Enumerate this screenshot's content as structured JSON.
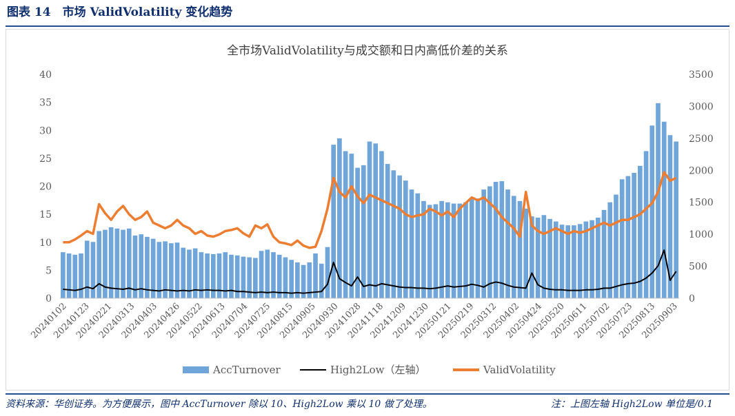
{
  "figure": {
    "title": "图表 14　市场 ValidVolatility 变化趋势",
    "source_note": "资料来源：华创证券。为方便展示，图中 AccTurnover 除以 10、High2Low 乘以 10 做了处理。",
    "unit_note": "注：上图左轴 High2Low 单位是/0.1"
  },
  "colors": {
    "acc_turnover": "#6fa5d8",
    "high2low": "#000000",
    "valid_volatility": "#ed7d31",
    "axis_text": "#595959",
    "title_blue": "#0f2f6f"
  },
  "chart_data": {
    "type": "bar+line",
    "title": "全市场ValidVolatility与成交额和日内高低价差的关系",
    "left_axis": {
      "min": 0,
      "max": 40,
      "ticks": [
        "0",
        "5",
        "10",
        "15",
        "20",
        "25",
        "30",
        "35",
        "40"
      ]
    },
    "right_axis": {
      "min": 0,
      "max": 3500,
      "ticks": [
        "0",
        "500",
        "1000",
        "1500",
        "2000",
        "2500",
        "3000",
        "3500"
      ]
    },
    "grid": false,
    "legend_position": "bottom",
    "x_tick_labels": [
      "20240102",
      "20240123",
      "20240221",
      "20240313",
      "20240403",
      "20240426",
      "20240522",
      "20240613",
      "20240704",
      "20240725",
      "20240815",
      "20240905",
      "20240930",
      "20241028",
      "20241118",
      "20241209",
      "20241230",
      "20250121",
      "20250219",
      "20250312",
      "20250402",
      "20250424",
      "20250520",
      "20250611",
      "20250702",
      "20250723",
      "20250813",
      "20250903"
    ],
    "series": [
      {
        "name": "AccTurnover",
        "type": "bar",
        "axis": "right",
        "values": [
          720,
          700,
          680,
          700,
          900,
          880,
          1050,
          1070,
          1110,
          1090,
          1070,
          1090,
          980,
          1000,
          960,
          930,
          880,
          890,
          860,
          870,
          790,
          760,
          780,
          720,
          700,
          690,
          700,
          720,
          680,
          670,
          650,
          640,
          630,
          740,
          760,
          720,
          680,
          640,
          600,
          560,
          520,
          560,
          700,
          540,
          800,
          2400,
          2500,
          2300,
          2260,
          2040,
          2080,
          2450,
          2420,
          2300,
          2100,
          2000,
          1920,
          1840,
          1700,
          1640,
          1520,
          1460,
          1470,
          1520,
          1500,
          1480,
          1480,
          1500,
          1550,
          1560,
          1700,
          1750,
          1820,
          1830,
          1700,
          1600,
          1520,
          1400,
          1280,
          1260,
          1300,
          1240,
          1200,
          1150,
          1140,
          1140,
          1160,
          1200,
          1220,
          1260,
          1380,
          1500,
          1620,
          1860,
          1910,
          1960,
          2070,
          2300,
          2700,
          3050,
          2760,
          2550,
          2450
        ]
      },
      {
        "name": "High2Low（左轴）",
        "type": "line",
        "axis": "left",
        "values": [
          1.6,
          1.5,
          1.4,
          1.6,
          2.0,
          1.7,
          2.6,
          2.0,
          1.8,
          1.7,
          1.6,
          1.8,
          1.5,
          1.7,
          1.5,
          1.4,
          1.3,
          1.5,
          1.4,
          1.3,
          1.4,
          1.3,
          1.5,
          1.4,
          1.5,
          1.4,
          1.4,
          1.3,
          1.4,
          1.2,
          1.2,
          1.1,
          1.0,
          1.1,
          1.0,
          1.1,
          1.0,
          1.0,
          0.9,
          1.0,
          0.9,
          1.0,
          1.1,
          1.2,
          2.5,
          6.4,
          3.5,
          2.8,
          2.2,
          3.8,
          2.1,
          2.4,
          2.2,
          2.6,
          2.4,
          2.2,
          2.0,
          1.9,
          1.9,
          1.8,
          1.8,
          1.7,
          1.8,
          2.0,
          2.2,
          2.0,
          2.1,
          2.2,
          2.5,
          2.3,
          2.0,
          2.6,
          2.9,
          2.7,
          2.3,
          2.0,
          1.9,
          1.8,
          4.5,
          2.4,
          1.8,
          1.6,
          1.5,
          1.5,
          1.4,
          1.4,
          1.4,
          1.5,
          1.5,
          1.6,
          1.8,
          1.8,
          2.1,
          2.4,
          2.6,
          2.7,
          3.0,
          3.6,
          4.5,
          5.8,
          8.6,
          3.2,
          4.8
        ]
      },
      {
        "name": "ValidVolatility",
        "type": "line",
        "axis": "left",
        "values": [
          10.0,
          10.0,
          10.5,
          11.2,
          12.0,
          11.5,
          16.8,
          15.2,
          14.0,
          15.5,
          16.5,
          15.0,
          14.0,
          14.5,
          15.5,
          13.5,
          13.0,
          12.5,
          13.0,
          14.0,
          13.0,
          12.5,
          11.5,
          12.0,
          11.2,
          11.0,
          11.4,
          12.0,
          12.2,
          12.5,
          11.6,
          11.0,
          13.0,
          12.5,
          13.2,
          11.0,
          10.0,
          9.8,
          9.5,
          10.3,
          9.4,
          9.0,
          9.2,
          12.0,
          16.0,
          21.5,
          19.0,
          18.0,
          20.0,
          18.2,
          17.0,
          18.5,
          18.0,
          17.5,
          17.0,
          16.5,
          16.0,
          15.0,
          14.5,
          14.8,
          15.0,
          16.0,
          15.5,
          14.8,
          15.5,
          14.5,
          16.0,
          17.0,
          18.0,
          17.5,
          18.0,
          17.0,
          16.0,
          14.5,
          13.5,
          12.5,
          11.0,
          19.0,
          13.0,
          12.0,
          11.5,
          12.0,
          12.5,
          12.0,
          11.5,
          12.0,
          11.7,
          12.0,
          12.5,
          13.0,
          13.5,
          13.0,
          13.5,
          14.0,
          14.0,
          14.5,
          15.0,
          16.0,
          17.0,
          19.0,
          22.5,
          21.0,
          21.5
        ]
      }
    ]
  }
}
